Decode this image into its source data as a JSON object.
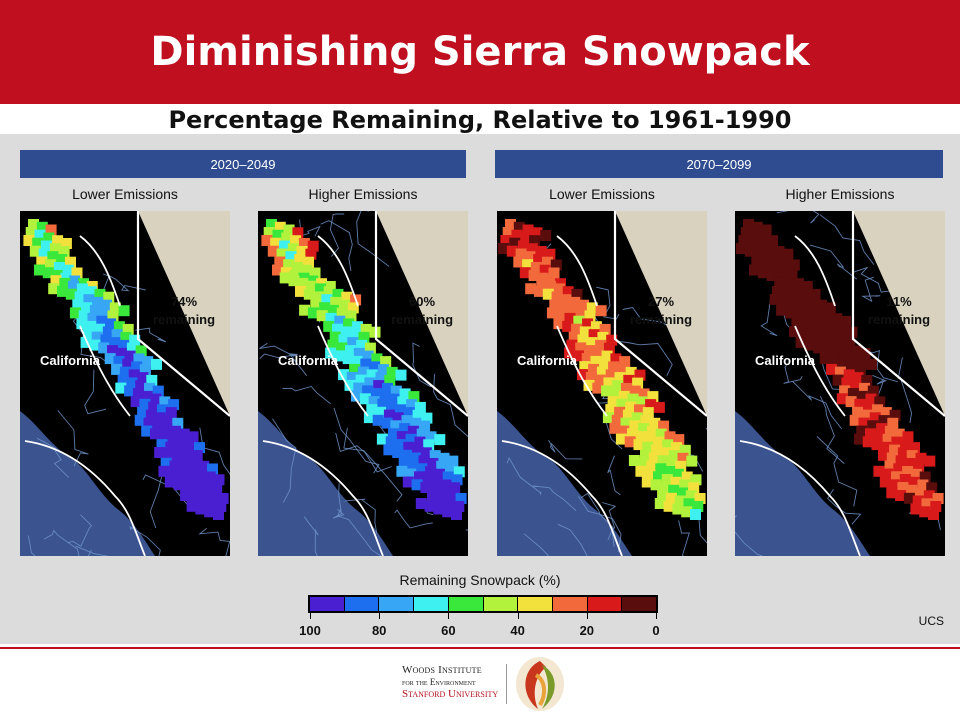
{
  "title": "Diminishing Sierra Snowpack",
  "subtitle": "Percentage Remaining, Relative to 1961-1990",
  "periods": [
    "2020–2049",
    "2070–2099"
  ],
  "panels": [
    {
      "period": "2020–2049",
      "scenario": "Lower Emissions",
      "remaining_label": "74%",
      "remaining_word": "remaining",
      "state_label": "California",
      "remaining_pct": 74
    },
    {
      "period": "2020–2049",
      "scenario": "Higher Emissions",
      "remaining_label": "60%",
      "remaining_word": "remaining",
      "state_label": "California",
      "remaining_pct": 60
    },
    {
      "period": "2070–2099",
      "scenario": "Lower Emissions",
      "remaining_label": "27%",
      "remaining_word": "remaining",
      "state_label": "California",
      "remaining_pct": 27
    },
    {
      "period": "2070–2099",
      "scenario": "Higher Emissions",
      "remaining_label": "11%",
      "remaining_word": "remaining",
      "state_label": "California",
      "remaining_pct": 11
    }
  ],
  "legend": {
    "title": "Remaining Snowpack (%)",
    "ticks": [
      "100",
      "80",
      "60",
      "40",
      "20",
      "0"
    ],
    "colors": [
      "#4a1fd1",
      "#1e6ff0",
      "#37a6f5",
      "#3ff0f0",
      "#39e83a",
      "#b3f23c",
      "#f2e03c",
      "#f26a3c",
      "#d81a1a",
      "#5a0d0d"
    ]
  },
  "credit": "UCS",
  "footer_logo": {
    "line1": "Woods Institute",
    "line2": "for the Environment",
    "line3": "Stanford University"
  },
  "colors": {
    "header_red": "#c00f1f",
    "period_bar_blue": "#2e4c8f",
    "nevada_fill": "#d9d2bf",
    "ocean": "#3b5490",
    "land": "#000000"
  }
}
